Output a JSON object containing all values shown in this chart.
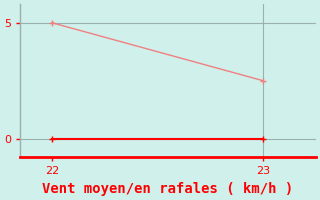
{
  "title": "",
  "xlabel": "Vent moyen/en rafales ( km/h )",
  "bg_color": "#cff0eb",
  "line1_x": [
    22,
    23
  ],
  "line1_y": [
    5,
    2.5
  ],
  "line1_color": "#f08080",
  "line2_x": [
    22,
    23
  ],
  "line2_y": [
    0,
    0
  ],
  "line2_color": "#ff0000",
  "vline_x": 23,
  "vline_color": "#9ab0ad",
  "xlim": [
    21.85,
    23.25
  ],
  "ylim": [
    -0.8,
    5.8
  ],
  "xticks": [
    22,
    23
  ],
  "yticks": [
    0,
    5
  ],
  "tick_label_color": "#ff0000",
  "xlabel_color": "#ff0000",
  "xlabel_fontsize": 10,
  "marker_size": 4,
  "left_spine_color": "#9ab0ad",
  "bottom_spine_color": "#ff0000",
  "grid_color": "#9ab0ad",
  "grid_lw": 0.8
}
